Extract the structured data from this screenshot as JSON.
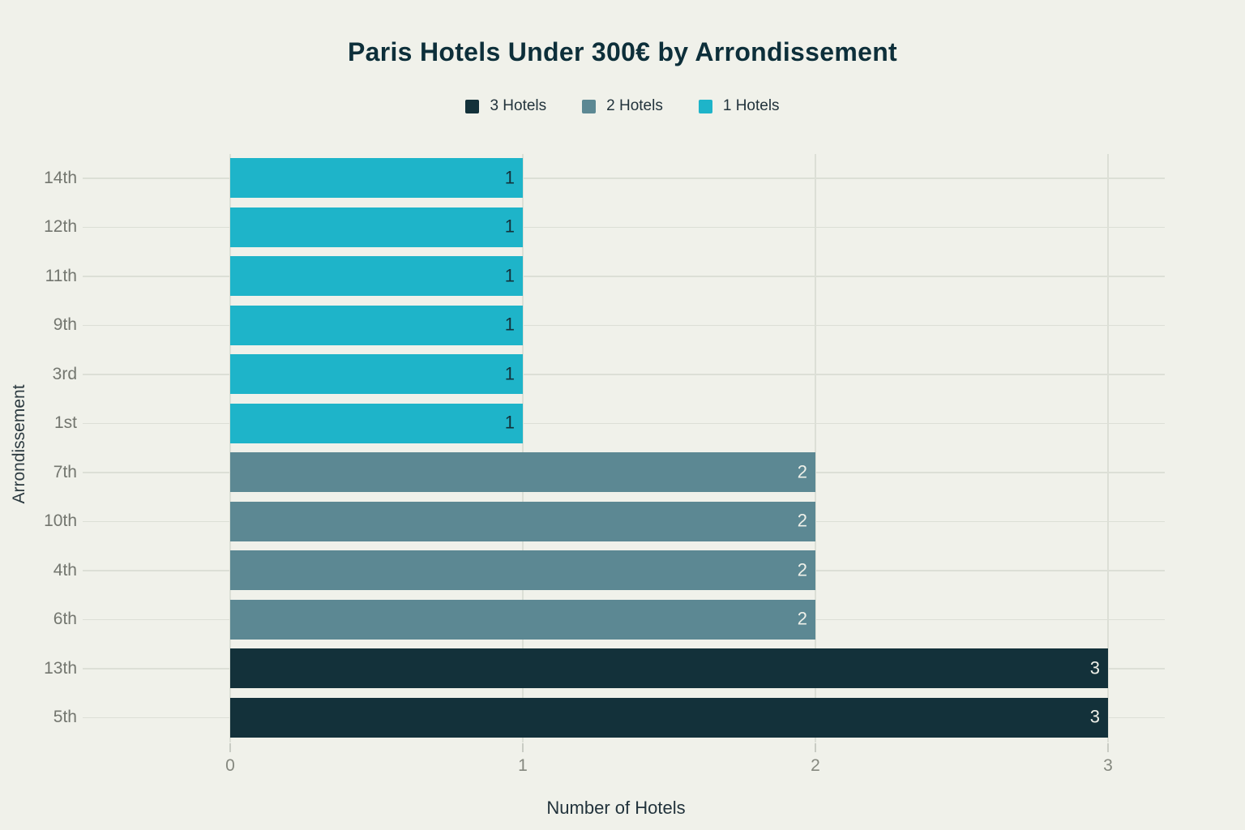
{
  "title": "Paris Hotels Under 300€ by Arrondissement",
  "colors": {
    "background": "#f0f1ea",
    "title_text": "#0d2f3a",
    "axis_title_text": "#22333c",
    "y_tick_label_text": "#73766f",
    "x_tick_label_text": "#85887f",
    "gridline": "#dcdfd6",
    "tick_mark": "#c9ccc4"
  },
  "legend": {
    "items": [
      {
        "label": "3 Hotels",
        "color": "#13313a",
        "value_label_color": "#eef0e9"
      },
      {
        "label": "2 Hotels",
        "color": "#5c8893",
        "value_label_color": "#eef0e9"
      },
      {
        "label": "1 Hotels",
        "color": "#1eb4c9",
        "value_label_color": "#13313a"
      }
    ]
  },
  "chart_data": {
    "type": "bar",
    "orientation": "horizontal",
    "title": "Paris Hotels Under 300€ by Arrondissement",
    "xlabel": "Number of Hotels",
    "ylabel": "Arrondissement",
    "xlim": [
      0,
      3.2
    ],
    "xticks": [
      0,
      1,
      2,
      3
    ],
    "grid": true,
    "legend_position": "top-center",
    "categories": [
      "14th",
      "12th",
      "11th",
      "9th",
      "3rd",
      "1st",
      "7th",
      "10th",
      "4th",
      "6th",
      "13th",
      "5th"
    ],
    "values": [
      1,
      1,
      1,
      1,
      1,
      1,
      2,
      2,
      2,
      2,
      3,
      3
    ],
    "series_labels": [
      "1 Hotels",
      "1 Hotels",
      "1 Hotels",
      "1 Hotels",
      "1 Hotels",
      "1 Hotels",
      "2 Hotels",
      "2 Hotels",
      "2 Hotels",
      "2 Hotels",
      "3 Hotels",
      "3 Hotels"
    ],
    "bar_value_labels": [
      "1",
      "1",
      "1",
      "1",
      "1",
      "1",
      "2",
      "2",
      "2",
      "2",
      "3",
      "3"
    ]
  }
}
